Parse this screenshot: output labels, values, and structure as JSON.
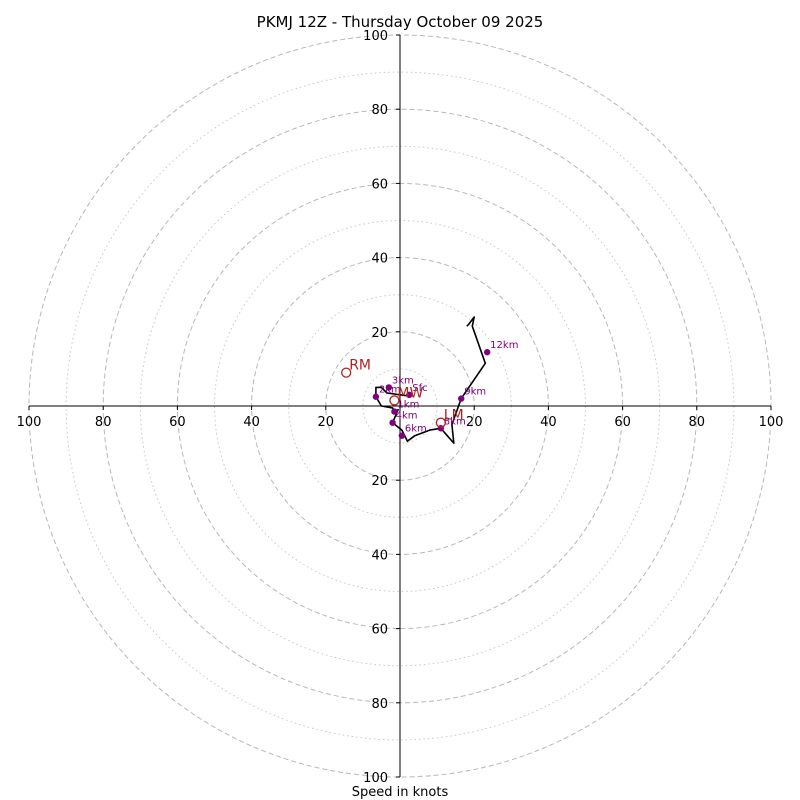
{
  "chart_data": {
    "type": "hodograph",
    "title": "PKMJ 12Z - Thursday October 09 2025",
    "xlabel": "Speed in knots",
    "range": [
      -100,
      100
    ],
    "rings_major": [
      20,
      40,
      60,
      80,
      100
    ],
    "rings_minor": [
      10,
      30,
      50,
      70,
      90
    ],
    "x_ticks": [
      -100,
      -80,
      -60,
      -40,
      -20,
      20,
      40,
      60,
      80,
      100
    ],
    "y_ticks": [
      -100,
      -80,
      -60,
      -40,
      -20,
      20,
      40,
      60,
      80,
      100
    ],
    "trace": [
      [
        2.5,
        3.0
      ],
      [
        1.5,
        2.8
      ],
      [
        -3.5,
        3.5
      ],
      [
        -5.0,
        5.0
      ],
      [
        -6.5,
        5.0
      ],
      [
        -6.5,
        2.5
      ],
      [
        -5.0,
        0.0
      ],
      [
        -2.0,
        -0.5
      ],
      [
        -1.5,
        -1.5
      ],
      [
        -1.0,
        -1.5
      ],
      [
        -0.5,
        -1.0
      ],
      [
        -2.0,
        -4.5
      ],
      [
        0.5,
        -6.5
      ],
      [
        2.0,
        -9.5
      ],
      [
        4.0,
        -8.0
      ],
      [
        8.0,
        -6.5
      ],
      [
        11.0,
        -6.0
      ],
      [
        14.5,
        -10.0
      ],
      [
        14.0,
        -5.0
      ],
      [
        16.5,
        2.0
      ],
      [
        23.0,
        11.5
      ],
      [
        19.5,
        21.5
      ],
      [
        20.0,
        24.0
      ],
      [
        18.5,
        22.0
      ],
      [
        18.0,
        21.5
      ]
    ],
    "height_markers": [
      {
        "label": "Sfc",
        "u": 2.5,
        "v": 3.0
      },
      {
        "label": "1km",
        "u": -1.5,
        "v": -1.5
      },
      {
        "label": "2km",
        "u": -6.5,
        "v": 2.5
      },
      {
        "label": "3km",
        "u": -3.0,
        "v": 5.0
      },
      {
        "label": "4km",
        "u": -2.0,
        "v": -4.5
      },
      {
        "label": "6km",
        "u": 0.5,
        "v": -8.0
      },
      {
        "label": "8km",
        "u": 11.0,
        "v": -6.0
      },
      {
        "label": "9km",
        "u": 16.5,
        "v": 2.0
      },
      {
        "label": "12km",
        "u": 23.5,
        "v": 14.5
      }
    ],
    "storm_motion": [
      {
        "label": "RM",
        "u": -14.5,
        "v": 9.0
      },
      {
        "label": "LM",
        "u": 11.0,
        "v": -4.5
      },
      {
        "label": "MW",
        "u": -1.5,
        "v": 1.5
      }
    ]
  }
}
